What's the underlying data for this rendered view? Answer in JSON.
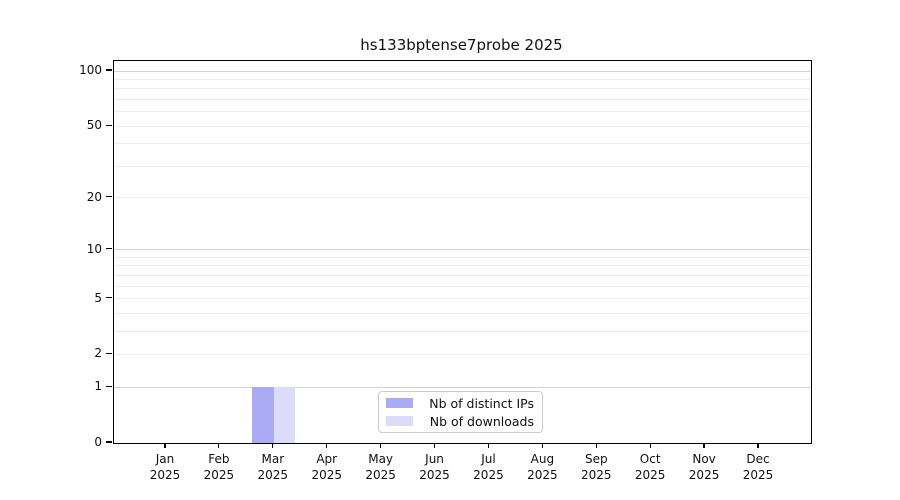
{
  "chart_data": {
    "type": "bar",
    "title": "hs133bptense7probe 2025",
    "categories": [
      "Jan",
      "Feb",
      "Mar",
      "Apr",
      "May",
      "Jun",
      "Jul",
      "Aug",
      "Sep",
      "Oct",
      "Nov",
      "Dec"
    ],
    "category_year": "2025",
    "series": [
      {
        "name": "Nb of distinct IPs",
        "color": "#aaaaf5",
        "values": [
          0,
          0,
          1,
          0,
          0,
          0,
          0,
          0,
          0,
          0,
          0,
          0
        ]
      },
      {
        "name": "Nb of downloads",
        "color": "#dcdcfa",
        "values": [
          0,
          0,
          1,
          0,
          0,
          0,
          0,
          0,
          0,
          0,
          0,
          0
        ]
      }
    ],
    "y_scale": "log1p",
    "ylim": [
      0,
      113.4
    ],
    "y_ticks": [
      0,
      1,
      2,
      5,
      10,
      20,
      50,
      100
    ],
    "y_gridlines_major": [
      1,
      10,
      100
    ],
    "y_gridlines_minor": [
      2,
      3,
      4,
      5,
      6,
      7,
      8,
      9,
      20,
      30,
      40,
      50,
      60,
      70,
      80,
      90
    ],
    "grid": "horizontal",
    "legend_position": "bottom-center",
    "background_color": "#ffffff",
    "axis_color": "#000000",
    "gridline_major_color": "#d2d2d2",
    "gridline_minor_color": "#ececec"
  }
}
